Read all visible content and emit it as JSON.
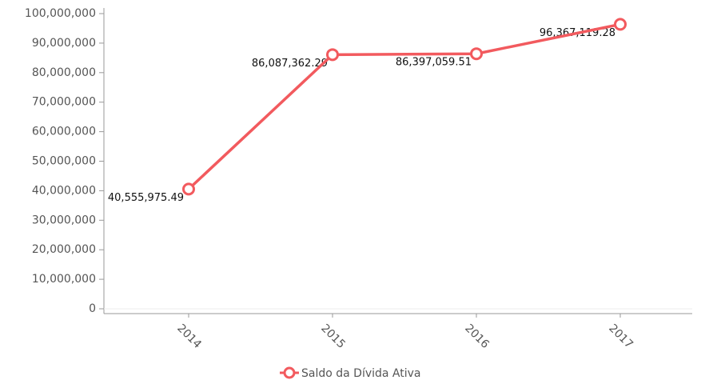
{
  "chart_data": {
    "type": "line",
    "categories": [
      "2014",
      "2015",
      "2016",
      "2017"
    ],
    "series": [
      {
        "name": "Saldo da Dívida Ativa",
        "color": "#f25a5e",
        "values": [
          40555975.49,
          86087362.29,
          86397059.51,
          96367119.28
        ],
        "value_labels": [
          "40,555,975.49",
          "86,087,362.29",
          "86,397,059.51",
          "96,367,119.28"
        ]
      }
    ],
    "ylim": [
      0,
      100000000
    ],
    "yticks": [
      {
        "value": 0,
        "label": "0"
      },
      {
        "value": 10000000,
        "label": "10,000,000"
      },
      {
        "value": 20000000,
        "label": "20,000,000"
      },
      {
        "value": 30000000,
        "label": "30,000,000"
      },
      {
        "value": 40000000,
        "label": "40,000,000"
      },
      {
        "value": 50000000,
        "label": "50,000,000"
      },
      {
        "value": 60000000,
        "label": "60,000,000"
      },
      {
        "value": 70000000,
        "label": "70,000,000"
      },
      {
        "value": 80000000,
        "label": "80,000,000"
      },
      {
        "value": 90000000,
        "label": "90,000,000"
      },
      {
        "value": 100000000,
        "label": "100,000,000"
      }
    ],
    "legend": "bottom"
  }
}
